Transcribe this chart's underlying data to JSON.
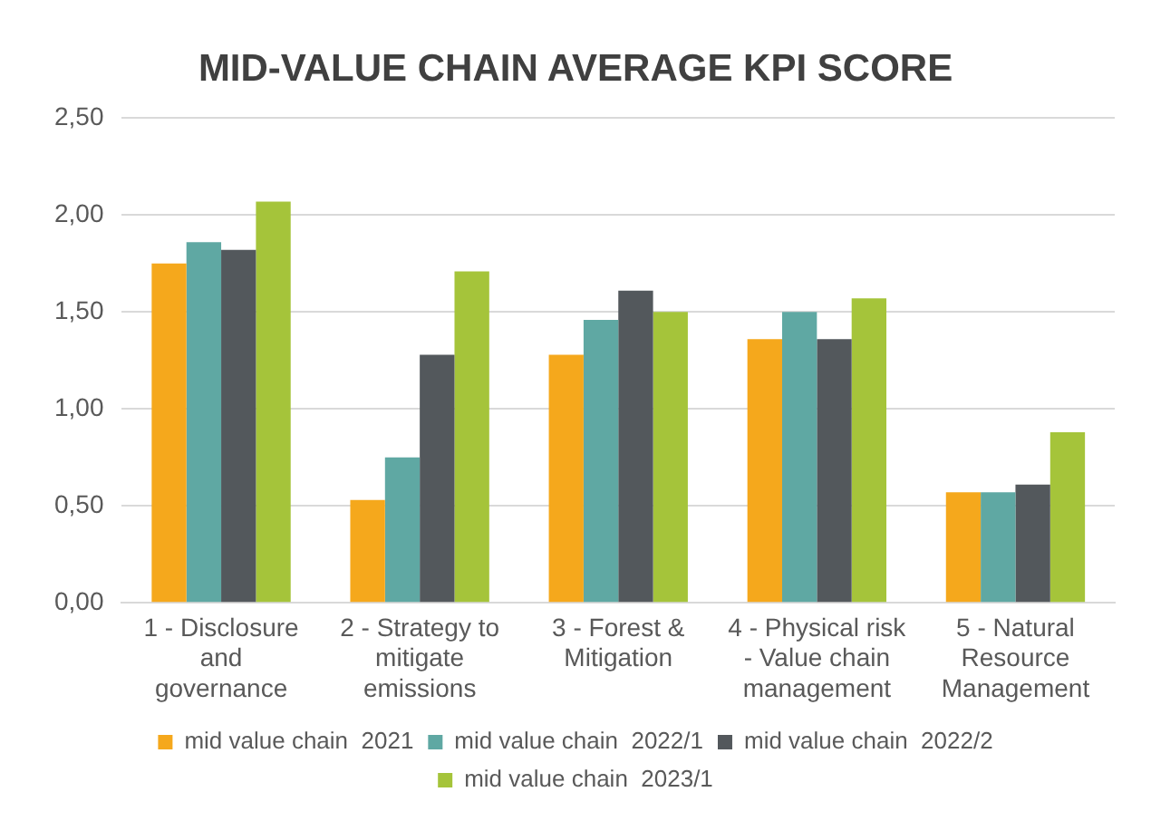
{
  "chart_data": {
    "type": "bar",
    "title": "MID-VALUE CHAIN AVERAGE KPI SCORE",
    "categories": [
      "1 - Disclosure and governance",
      "2 - Strategy to mitigate emissions",
      "3 - Forest & Mitigation",
      "4 - Physical risk - Value chain management",
      "5 - Natural Resource Management"
    ],
    "series": [
      {
        "name": "mid value chain  2021",
        "color": "#f5a81c",
        "values": [
          1.75,
          0.53,
          1.28,
          1.36,
          0.57
        ]
      },
      {
        "name": "mid value chain  2022/1",
        "color": "#5fa8a3",
        "values": [
          1.86,
          0.75,
          1.46,
          1.5,
          0.57
        ]
      },
      {
        "name": "mid value chain  2022/2",
        "color": "#53585c",
        "values": [
          1.82,
          1.28,
          1.61,
          1.36,
          0.61
        ]
      },
      {
        "name": "mid value chain  2023/1",
        "color": "#a5c43a",
        "values": [
          2.07,
          1.71,
          1.5,
          1.57,
          0.88
        ]
      }
    ],
    "ylim": [
      0,
      2.5
    ],
    "yticks": [
      {
        "value": 0,
        "label": "0,00"
      },
      {
        "value": 0.5,
        "label": "0,50"
      },
      {
        "value": 1,
        "label": "1,00"
      },
      {
        "value": 1.5,
        "label": "1,50"
      },
      {
        "value": 2,
        "label": "2,00"
      },
      {
        "value": 2.5,
        "label": "2,50"
      }
    ],
    "grid": "y",
    "legend": "bottom"
  }
}
